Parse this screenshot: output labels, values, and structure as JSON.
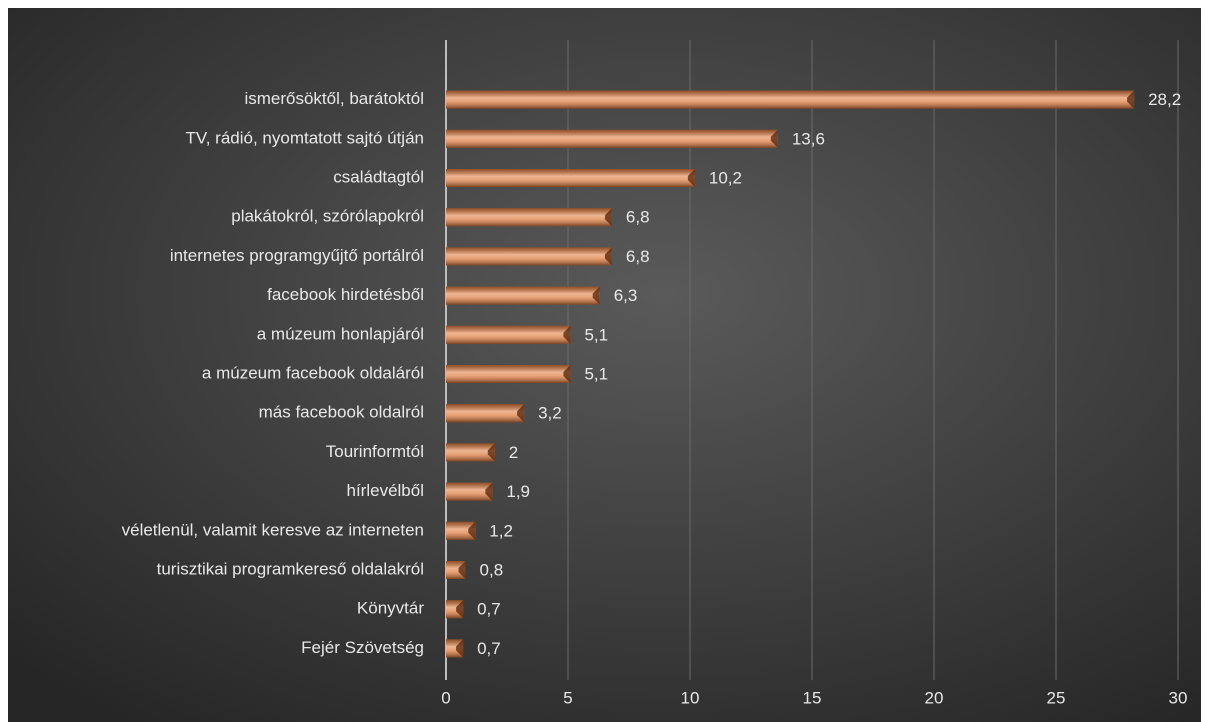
{
  "chart_data": {
    "type": "bar",
    "orientation": "horizontal",
    "categories": [
      "ismerősöktől, barátoktól",
      "TV, rádió, nyomtatott sajtó útján",
      "családtagtól",
      "plakátokról, szórólapokról",
      "internetes programgyűjtő portálról",
      "facebook hirdetésből",
      "a múzeum honlapjáról",
      "a múzeum facebook oldaláról",
      "más facebook oldalról",
      "Tourinformtól",
      "hírlevélből",
      "véletlenül, valamit keresve az interneten",
      "turisztikai programkereső oldalakról",
      "Könyvtár",
      "Fejér Szövetség"
    ],
    "values": [
      28.2,
      13.6,
      10.2,
      6.8,
      6.8,
      6.3,
      5.1,
      5.1,
      3.2,
      2,
      1.9,
      1.2,
      0.8,
      0.7,
      0.7
    ],
    "value_labels": [
      "28,2",
      "13,6",
      "10,2",
      "6,8",
      "6,8",
      "6,3",
      "5,1",
      "5,1",
      "3,2",
      "2",
      "1,9",
      "1,2",
      "0,8",
      "0,7",
      "0,7"
    ],
    "color": "#e07a3c",
    "xlim": [
      0,
      30
    ],
    "xticks": [
      0,
      5,
      10,
      15,
      20,
      25,
      30
    ],
    "grid": true
  }
}
